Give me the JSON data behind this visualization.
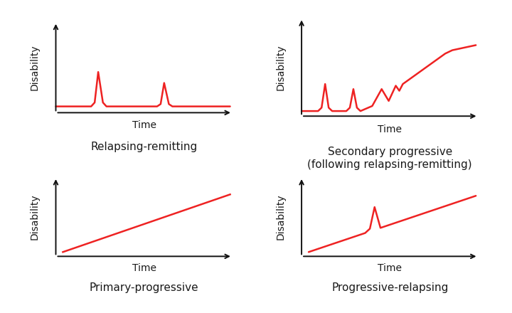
{
  "line_color": "#ee2222",
  "axis_color": "#111111",
  "bg_color": "#ffffff",
  "label_color": "#1a1a1a",
  "line_width": 1.8,
  "disability_label": "Disability",
  "time_label": "Time",
  "titles": [
    "Relapsing-remitting",
    "Secondary progressive\n(following relapsing-remitting)",
    "Primary-progressive",
    "Progressive-relapsing"
  ],
  "title_fontsize": 11,
  "axis_label_fontsize": 10,
  "arrow_lw": 1.4
}
